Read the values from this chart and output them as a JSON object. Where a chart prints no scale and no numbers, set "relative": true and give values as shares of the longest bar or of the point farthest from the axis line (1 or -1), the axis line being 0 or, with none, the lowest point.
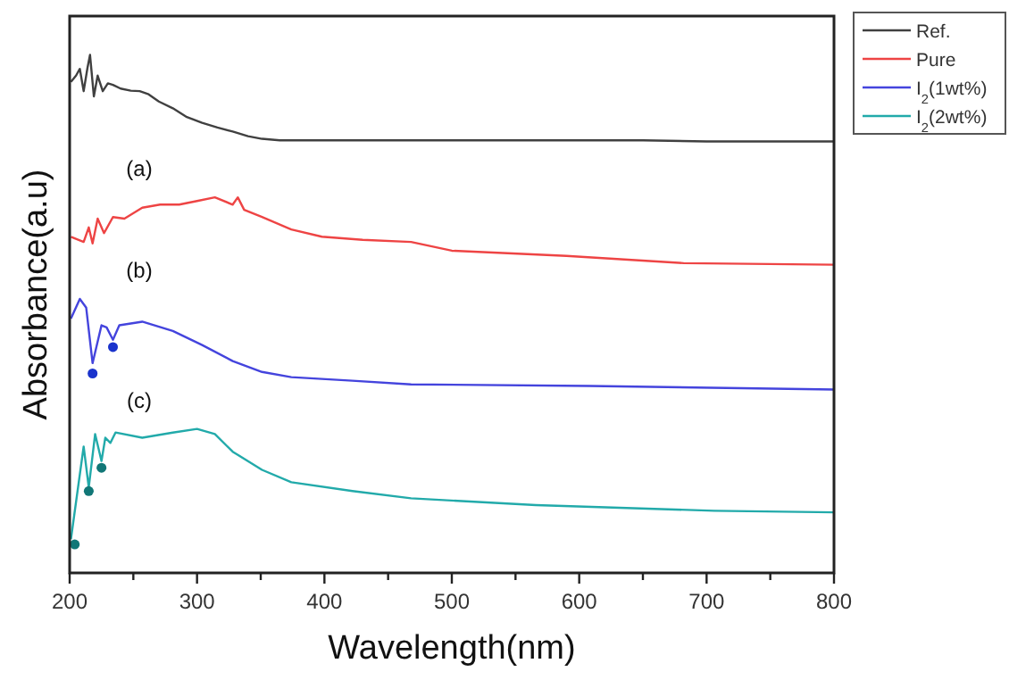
{
  "chart_data": {
    "type": "line",
    "relative": true,
    "xlabel": "Wavelength(nm)",
    "ylabel": "Absorbance(a.u)",
    "xlim": [
      200,
      800
    ],
    "xticks": [
      200,
      {
        "value": 250,
        "label": null
      },
      300,
      {
        "value": 350,
        "label": null
      },
      400,
      {
        "value": 450,
        "label": null
      },
      500,
      {
        "value": 550,
        "label": null
      },
      600,
      {
        "value": 650,
        "label": null
      },
      700,
      {
        "value": 750,
        "label": null
      },
      800
    ],
    "tick_labels": "x",
    "legend": "top right",
    "grid": false,
    "marker": "none",
    "line_style": "solid",
    "annotations": [
      "(a)",
      "(b)",
      "(c)"
    ],
    "series": [
      {
        "name": "Ref.",
        "color": "#404040",
        "x": [
          201,
          205,
          208,
          211,
          214,
          216,
          219,
          222,
          226,
          230,
          234,
          240,
          248,
          255,
          262,
          270,
          281,
          292,
          304,
          316,
          328,
          340,
          351,
          365,
          400,
          500,
          600,
          650,
          700,
          800
        ],
        "values": [
          0.948,
          0.96,
          0.973,
          0.93,
          0.975,
          1.0,
          0.92,
          0.96,
          0.93,
          0.945,
          0.942,
          0.935,
          0.931,
          0.93,
          0.924,
          0.91,
          0.897,
          0.88,
          0.869,
          0.86,
          0.852,
          0.843,
          0.838,
          0.835,
          0.835,
          0.835,
          0.835,
          0.835,
          0.833,
          0.833
        ]
      },
      {
        "name": "Pure",
        "color": "#ee4444",
        "x": [
          201,
          211,
          215,
          218,
          222,
          227,
          234,
          243,
          257,
          271,
          286,
          300,
          314,
          328,
          332,
          337,
          351,
          374,
          398,
          430,
          468,
          500,
          590,
          682,
          800
        ],
        "values": [
          0.649,
          0.639,
          0.667,
          0.636,
          0.684,
          0.656,
          0.687,
          0.684,
          0.705,
          0.711,
          0.711,
          0.718,
          0.725,
          0.711,
          0.725,
          0.701,
          0.687,
          0.663,
          0.649,
          0.643,
          0.639,
          0.622,
          0.612,
          0.598,
          0.595
        ]
      },
      {
        "name": "I$_{2}$(1wt%)",
        "color": "#4444dd",
        "x": [
          201,
          208,
          213,
          218,
          225,
          229,
          234,
          239,
          257,
          281,
          304,
          328,
          351,
          374,
          422,
          468,
          608,
          800
        ],
        "values": [
          0.491,
          0.529,
          0.512,
          0.405,
          0.478,
          0.474,
          0.45,
          0.478,
          0.485,
          0.467,
          0.44,
          0.409,
          0.388,
          0.378,
          0.371,
          0.364,
          0.361,
          0.354
        ]
      },
      {
        "name": "I$_{2}$(2wt%)",
        "color": "#22aaaa",
        "x": [
          201,
          211,
          215,
          220,
          225,
          228,
          232,
          236,
          257,
          281,
          300,
          314,
          328,
          351,
          374,
          422,
          468,
          566,
          706,
          800
        ],
        "values": [
          0.065,
          0.244,
          0.165,
          0.268,
          0.216,
          0.261,
          0.251,
          0.271,
          0.261,
          0.271,
          0.278,
          0.268,
          0.234,
          0.199,
          0.175,
          0.158,
          0.144,
          0.131,
          0.12,
          0.117
        ]
      },
      {
        "type": "scatter",
        "marker": "circle",
        "color": "#1a33cc",
        "x": [
          218,
          234
        ],
        "values": [
          0.385,
          0.436
        ]
      },
      {
        "type": "scatter",
        "marker": "circle",
        "color": "#117777",
        "x": [
          204,
          215,
          225
        ],
        "values": [
          0.055,
          0.158,
          0.203
        ]
      }
    ]
  }
}
